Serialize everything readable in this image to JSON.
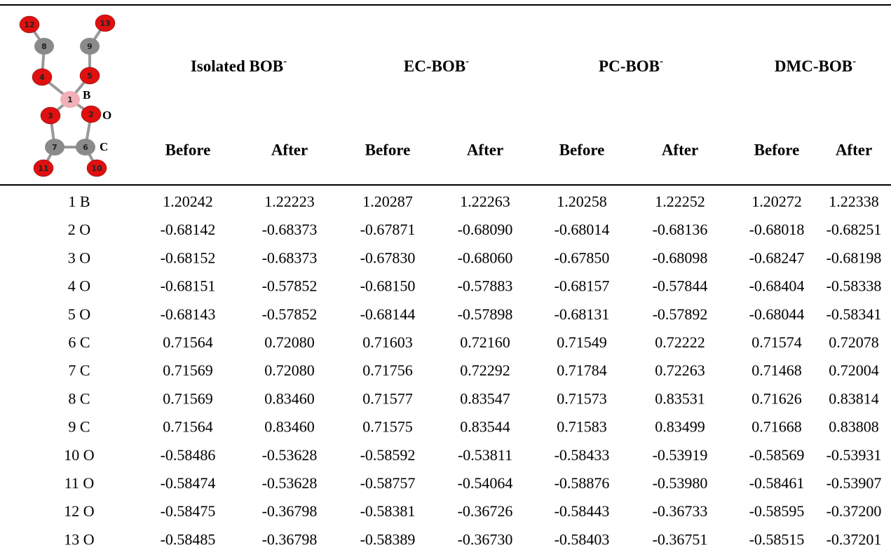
{
  "molecule": {
    "atoms": [
      "12",
      "13",
      "8",
      "9",
      "4",
      "5",
      "1",
      "3",
      "2",
      "7",
      "6",
      "11",
      "10"
    ],
    "elements": [
      "B",
      "O",
      "C"
    ]
  },
  "table": {
    "groups": [
      {
        "name": "Isolated BOB",
        "charge": "-"
      },
      {
        "name": "EC-BOB",
        "charge": "-"
      },
      {
        "name": "PC-BOB",
        "charge": "-"
      },
      {
        "name": "DMC-BOB",
        "charge": "-"
      }
    ],
    "subheaders": [
      "Before",
      "After",
      "Before",
      "After",
      "Before",
      "After",
      "Before",
      "After"
    ],
    "rows": [
      [
        "1 B",
        "1.20242",
        "1.22223",
        "1.20287",
        "1.22263",
        "1.20258",
        "1.22252",
        "1.20272",
        "1.22338"
      ],
      [
        "2 O",
        "-0.68142",
        "-0.68373",
        "-0.67871",
        "-0.68090",
        "-0.68014",
        "-0.68136",
        "-0.68018",
        "-0.68251"
      ],
      [
        "3 O",
        "-0.68152",
        "-0.68373",
        "-0.67830",
        "-0.68060",
        "-0.67850",
        "-0.68098",
        "-0.68247",
        "-0.68198"
      ],
      [
        "4 O",
        "-0.68151",
        "-0.57852",
        "-0.68150",
        "-0.57883",
        "-0.68157",
        "-0.57844",
        "-0.68404",
        "-0.58338"
      ],
      [
        "5 O",
        "-0.68143",
        "-0.57852",
        "-0.68144",
        "-0.57898",
        "-0.68131",
        "-0.57892",
        "-0.68044",
        "-0.58341"
      ],
      [
        "6 C",
        "0.71564",
        "0.72080",
        "0.71603",
        "0.72160",
        "0.71549",
        "0.72222",
        "0.71574",
        "0.72078"
      ],
      [
        "7 C",
        "0.71569",
        "0.72080",
        "0.71756",
        "0.72292",
        "0.71784",
        "0.72263",
        "0.71468",
        "0.72004"
      ],
      [
        "8 C",
        "0.71569",
        "0.83460",
        "0.71577",
        "0.83547",
        "0.71573",
        "0.83531",
        "0.71626",
        "0.83814"
      ],
      [
        "9 C",
        "0.71564",
        "0.83460",
        "0.71575",
        "0.83544",
        "0.71583",
        "0.83499",
        "0.71668",
        "0.83808"
      ],
      [
        "10 O",
        "-0.58486",
        "-0.53628",
        "-0.58592",
        "-0.53811",
        "-0.58433",
        "-0.53919",
        "-0.58569",
        "-0.53931"
      ],
      [
        "11 O",
        "-0.58474",
        "-0.53628",
        "-0.58757",
        "-0.54064",
        "-0.58876",
        "-0.53980",
        "-0.58461",
        "-0.53907"
      ],
      [
        "12 O",
        "-0.58475",
        "-0.36798",
        "-0.58381",
        "-0.36726",
        "-0.58443",
        "-0.36733",
        "-0.58595",
        "-0.37200"
      ],
      [
        "13 O",
        "-0.58485",
        "-0.36798",
        "-0.58389",
        "-0.36730",
        "-0.58403",
        "-0.36751",
        "-0.58515",
        "-0.37201"
      ]
    ]
  }
}
